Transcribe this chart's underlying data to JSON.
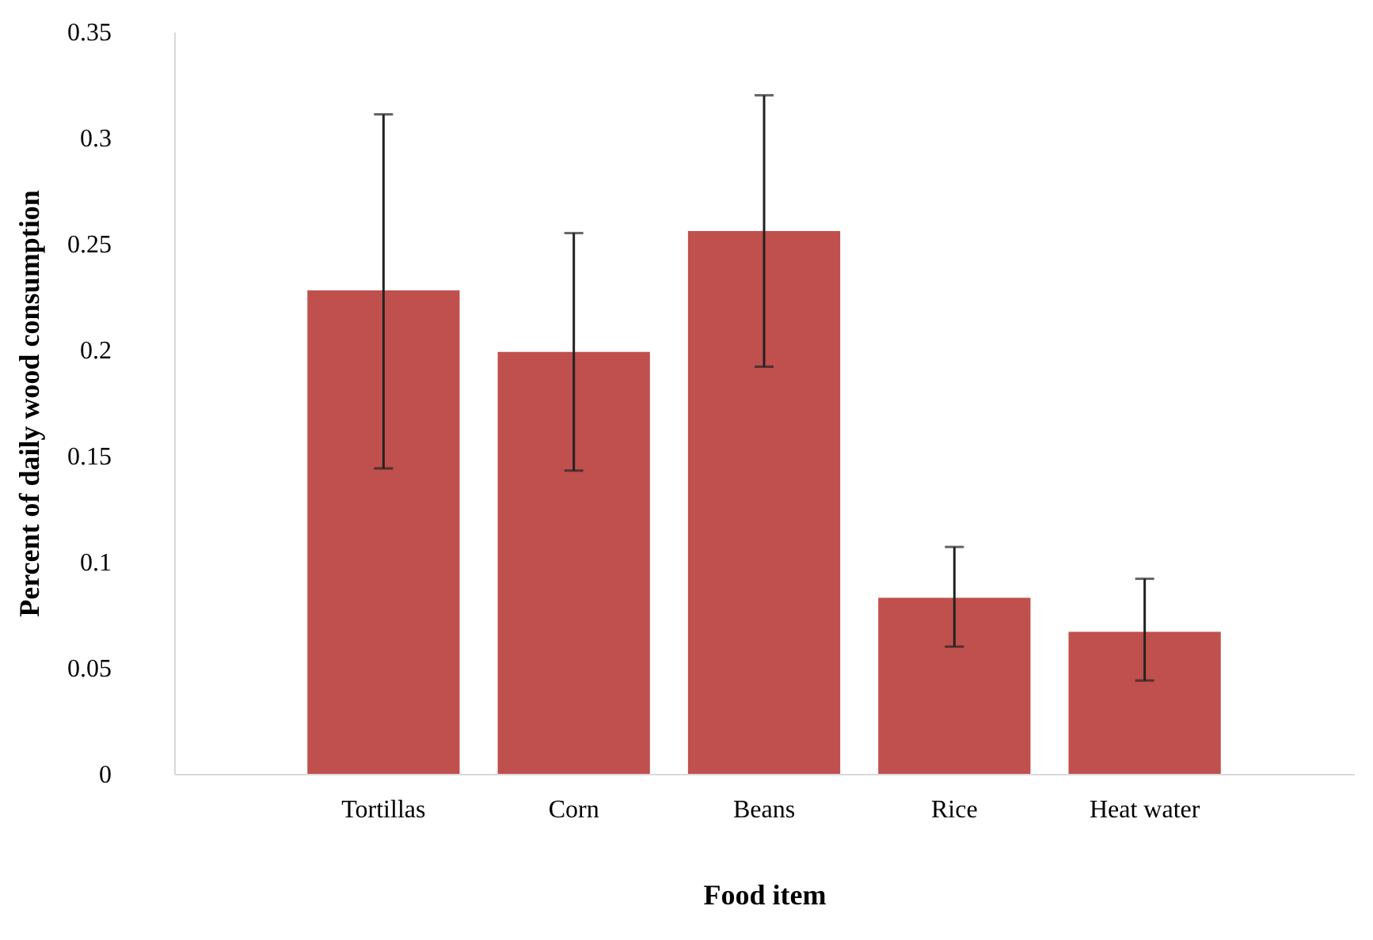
{
  "chart_data": {
    "type": "bar",
    "xlabel": "Food item",
    "ylabel": "Percent of daily wood consumption",
    "categories": [
      "Tortillas",
      "Corn",
      "Beans",
      "Rice",
      "Heat water"
    ],
    "values": [
      0.228,
      0.199,
      0.256,
      0.083,
      0.067
    ],
    "errors": [
      [
        0.144,
        0.311
      ],
      [
        0.143,
        0.255
      ],
      [
        0.192,
        0.32
      ],
      [
        0.06,
        0.107
      ],
      [
        0.044,
        0.092
      ]
    ],
    "color": "#c0504d",
    "ylim": [
      0,
      0.35
    ],
    "yticks": [
      0,
      0.05,
      0.1,
      0.15,
      0.2,
      0.25,
      0.3,
      0.35
    ],
    "grid": false
  }
}
